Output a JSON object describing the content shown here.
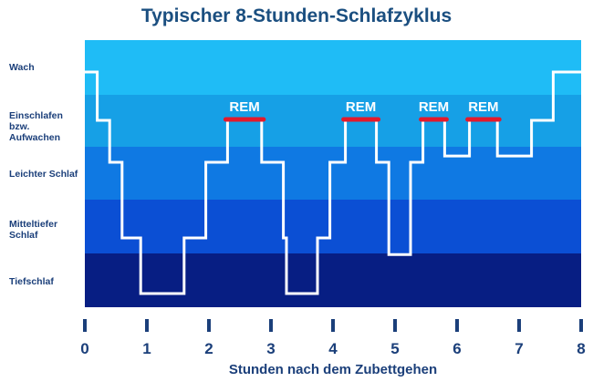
{
  "chart_data": {
    "type": "line",
    "title": "Typischer 8-Stunden-Schlafzyklus",
    "xlabel": "Stunden nach dem Zubettgehen",
    "ylabel": "",
    "xlim": [
      0,
      8
    ],
    "xticks": [
      "0",
      "1",
      "2",
      "3",
      "4",
      "5",
      "6",
      "7",
      "8"
    ],
    "stages": [
      {
        "name": "Wach",
        "color": "#1fbcf6"
      },
      {
        "name": "Einschlafen bzw. Aufwachen",
        "color": "#16a0e6"
      },
      {
        "name": "Leichter Schlaf",
        "color": "#0f79e3"
      },
      {
        "name": "Mitteltiefer Schlaf",
        "color": "#0b4fd4"
      },
      {
        "name": "Tiefschlaf",
        "color": "#071e83"
      }
    ],
    "series": [
      {
        "color": "#ffffff",
        "points": [
          [
            0.0,
            0.0
          ],
          [
            0.2,
            0.0
          ],
          [
            0.2,
            1.0
          ],
          [
            0.4,
            1.0
          ],
          [
            0.4,
            2.0
          ],
          [
            0.6,
            2.0
          ],
          [
            0.6,
            3.0
          ],
          [
            0.9,
            3.0
          ],
          [
            0.9,
            4.0
          ],
          [
            1.6,
            4.0
          ],
          [
            1.6,
            3.0
          ],
          [
            1.95,
            3.0
          ],
          [
            1.95,
            2.0
          ],
          [
            2.3,
            2.0
          ],
          [
            2.3,
            1.0
          ],
          [
            2.85,
            1.0
          ],
          [
            2.85,
            2.0
          ],
          [
            3.2,
            2.0
          ],
          [
            3.2,
            3.0
          ],
          [
            3.25,
            3.0
          ],
          [
            3.25,
            4.0
          ],
          [
            3.75,
            4.0
          ],
          [
            3.75,
            3.0
          ],
          [
            3.95,
            3.0
          ],
          [
            3.95,
            2.0
          ],
          [
            4.2,
            2.0
          ],
          [
            4.2,
            1.0
          ],
          [
            4.7,
            1.0
          ],
          [
            4.7,
            2.0
          ],
          [
            4.9,
            2.0
          ],
          [
            4.9,
            3.3
          ],
          [
            5.25,
            3.3
          ],
          [
            5.25,
            2.0
          ],
          [
            5.45,
            2.0
          ],
          [
            5.45,
            1.0
          ],
          [
            5.8,
            1.0
          ],
          [
            5.8,
            1.85
          ],
          [
            6.2,
            1.85
          ],
          [
            6.2,
            1.0
          ],
          [
            6.65,
            1.0
          ],
          [
            6.65,
            1.85
          ],
          [
            7.2,
            1.85
          ],
          [
            7.2,
            1.0
          ],
          [
            7.55,
            1.0
          ],
          [
            7.55,
            0.0
          ],
          [
            8.0,
            0.0
          ]
        ]
      }
    ],
    "rem_label": "REM",
    "rem_color": "#e21a2c",
    "rem_periods": [
      [
        2.3,
        2.85
      ],
      [
        4.2,
        4.7
      ],
      [
        5.45,
        5.8
      ],
      [
        6.2,
        6.65
      ]
    ]
  }
}
